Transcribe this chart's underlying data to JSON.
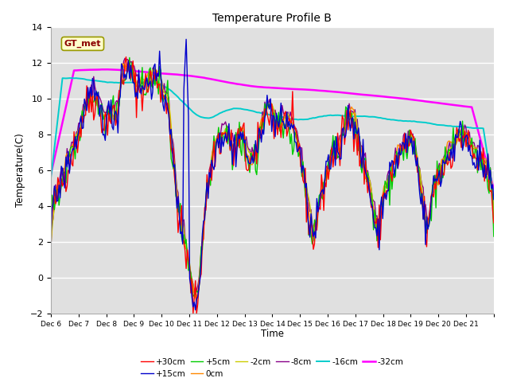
{
  "title": "Temperature Profile B",
  "xlabel": "Time",
  "ylabel": "Temperature(C)",
  "ylim": [
    -2,
    14
  ],
  "yticks": [
    -2,
    0,
    2,
    4,
    6,
    8,
    10,
    12,
    14
  ],
  "x_labels": [
    "Dec 6",
    "Dec 7",
    "Dec 8",
    "Dec 9",
    "Dec 10",
    "Dec 11",
    "Dec 12",
    "Dec 13",
    "Dec 14",
    "Dec 15",
    "Dec 16",
    "Dec 17",
    "Dec 18",
    "Dec 19",
    "Dec 20",
    "Dec 21"
  ],
  "bg_color": "#e0e0e0",
  "legend_label": "GT_met",
  "series_labels": [
    "+30cm",
    "+15cm",
    "+5cm",
    "0cm",
    "-2cm",
    "-8cm",
    "-16cm",
    "-32cm"
  ],
  "series_colors": [
    "#ff0000",
    "#0000cc",
    "#00cc00",
    "#ff8800",
    "#cccc00",
    "#880088",
    "#00cccc",
    "#ff00ff"
  ],
  "series_linewidths": [
    1.0,
    1.0,
    1.0,
    1.0,
    1.0,
    1.0,
    1.4,
    1.8
  ]
}
